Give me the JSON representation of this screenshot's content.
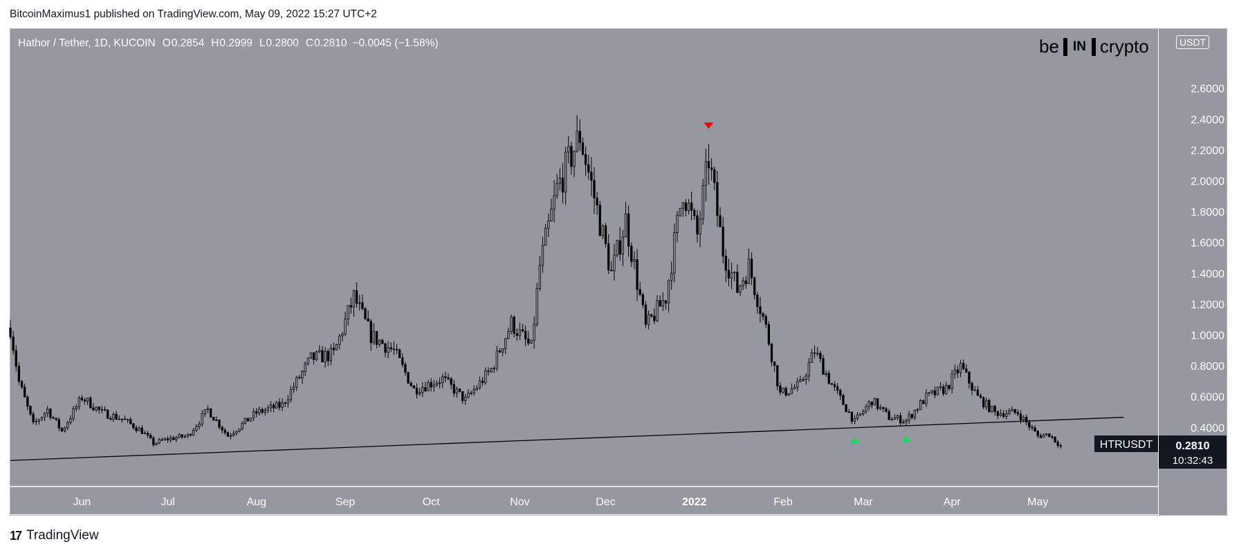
{
  "publisher": "BitcoinMaximus1 published on TradingView.com, May 09, 2022 15:27 UTC+2",
  "legend": {
    "pair": "Hathor / Tether, 1D, KUCOIN",
    "open_label": "O",
    "open": "0.2854",
    "high_label": "H",
    "high": "0.2999",
    "low_label": "L",
    "low": "0.2800",
    "close_label": "C",
    "close": "0.2810",
    "change": "−0.0045 (−1.58%)"
  },
  "brand": {
    "left": "be",
    "mid": "IN",
    "right": "crypto"
  },
  "footer": {
    "logo": "17",
    "name": "TradingView"
  },
  "colors": {
    "plot_bg": "#9598a1",
    "candle": "#000000",
    "marker_top": "#ff0000",
    "marker_bottom": "#00e64d",
    "price_tag_bg": "#131722"
  },
  "icons": {
    "resistance": "triangle-down-icon",
    "support": "triangle-up-icon"
  },
  "chart_data": {
    "type": "candlestick",
    "symbol": "HTRUSDT",
    "unit": "USDT",
    "last_price": "0.2810",
    "countdown": "10:32:43",
    "x_ticks": [
      "Jun",
      "Jul",
      "Aug",
      "Sep",
      "Oct",
      "Nov",
      "Dec",
      "2022",
      "Feb",
      "Mar",
      "Apr",
      "May"
    ],
    "y_ticks": [
      "2.6000",
      "2.4000",
      "2.2000",
      "2.0000",
      "1.8000",
      "1.6000",
      "1.4000",
      "1.2000",
      "1.0000",
      "0.8000",
      "0.6000",
      "0.4000"
    ],
    "ylim": [
      0,
      2.6
    ],
    "x_range": [
      "2021-05-07",
      "2022-06-12"
    ],
    "price_path": [
      {
        "date": "2021-05-07",
        "close": 1.05
      },
      {
        "date": "2021-05-10",
        "close": 0.7
      },
      {
        "date": "2021-05-15",
        "close": 0.42
      },
      {
        "date": "2021-05-20",
        "close": 0.52
      },
      {
        "date": "2021-05-25",
        "close": 0.38
      },
      {
        "date": "2021-06-01",
        "close": 0.6
      },
      {
        "date": "2021-06-08",
        "close": 0.5
      },
      {
        "date": "2021-06-15",
        "close": 0.46
      },
      {
        "date": "2021-06-22",
        "close": 0.38
      },
      {
        "date": "2021-06-26",
        "close": 0.3
      },
      {
        "date": "2021-07-01",
        "close": 0.33
      },
      {
        "date": "2021-07-08",
        "close": 0.35
      },
      {
        "date": "2021-07-15",
        "close": 0.52
      },
      {
        "date": "2021-07-22",
        "close": 0.35
      },
      {
        "date": "2021-08-01",
        "close": 0.5
      },
      {
        "date": "2021-08-10",
        "close": 0.55
      },
      {
        "date": "2021-08-20",
        "close": 0.85
      },
      {
        "date": "2021-08-28",
        "close": 0.88
      },
      {
        "date": "2021-09-04",
        "close": 1.25
      },
      {
        "date": "2021-09-10",
        "close": 1.0
      },
      {
        "date": "2021-09-18",
        "close": 0.9
      },
      {
        "date": "2021-09-25",
        "close": 0.65
      },
      {
        "date": "2021-10-05",
        "close": 0.72
      },
      {
        "date": "2021-10-13",
        "close": 0.58
      },
      {
        "date": "2021-10-22",
        "close": 0.78
      },
      {
        "date": "2021-10-29",
        "close": 1.08
      },
      {
        "date": "2021-11-05",
        "close": 0.92
      },
      {
        "date": "2021-11-08",
        "close": 1.45
      },
      {
        "date": "2021-11-14",
        "close": 1.95
      },
      {
        "date": "2021-11-22",
        "close": 2.3
      },
      {
        "date": "2021-11-27",
        "close": 1.9
      },
      {
        "date": "2021-12-03",
        "close": 1.4
      },
      {
        "date": "2021-12-08",
        "close": 1.75
      },
      {
        "date": "2021-12-15",
        "close": 1.05
      },
      {
        "date": "2021-12-22",
        "close": 1.25
      },
      {
        "date": "2021-12-28",
        "close": 1.95
      },
      {
        "date": "2022-01-02",
        "close": 1.65
      },
      {
        "date": "2022-01-06",
        "close": 2.15
      },
      {
        "date": "2022-01-11",
        "close": 1.55
      },
      {
        "date": "2022-01-16",
        "close": 1.3
      },
      {
        "date": "2022-01-20",
        "close": 1.45
      },
      {
        "date": "2022-01-26",
        "close": 1.05
      },
      {
        "date": "2022-01-31",
        "close": 0.62
      },
      {
        "date": "2022-02-07",
        "close": 0.68
      },
      {
        "date": "2022-02-12",
        "close": 0.9
      },
      {
        "date": "2022-02-18",
        "close": 0.68
      },
      {
        "date": "2022-02-26",
        "close": 0.44
      },
      {
        "date": "2022-03-04",
        "close": 0.58
      },
      {
        "date": "2022-03-10",
        "close": 0.47
      },
      {
        "date": "2022-03-16",
        "close": 0.45
      },
      {
        "date": "2022-03-23",
        "close": 0.6
      },
      {
        "date": "2022-03-30",
        "close": 0.66
      },
      {
        "date": "2022-04-04",
        "close": 0.8
      },
      {
        "date": "2022-04-10",
        "close": 0.6
      },
      {
        "date": "2022-04-16",
        "close": 0.5
      },
      {
        "date": "2022-04-24",
        "close": 0.5
      },
      {
        "date": "2022-05-01",
        "close": 0.35
      },
      {
        "date": "2022-05-05",
        "close": 0.36
      },
      {
        "date": "2022-05-09",
        "close": 0.281
      }
    ],
    "trendline": [
      {
        "date": "2021-05-07",
        "y": 0.19
      },
      {
        "date": "2022-05-31",
        "y": 0.47
      }
    ],
    "markers": [
      {
        "type": "resistance",
        "date": "2022-01-06",
        "y": 2.36
      },
      {
        "type": "support",
        "date": "2022-02-26",
        "y": 0.32
      },
      {
        "type": "support",
        "date": "2022-03-16",
        "y": 0.33
      }
    ]
  }
}
